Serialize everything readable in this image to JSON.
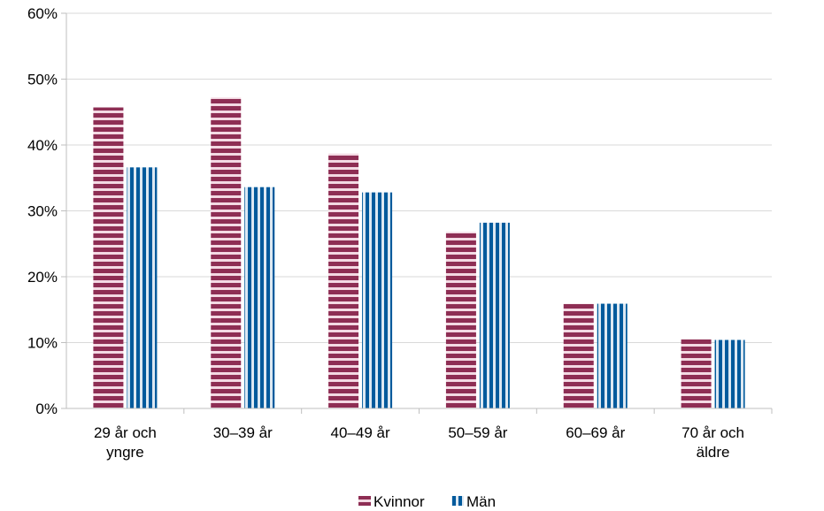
{
  "chart_data": {
    "type": "bar",
    "title": "",
    "xlabel": "",
    "ylabel": "",
    "categories": [
      [
        "29 år och",
        "yngre"
      ],
      [
        "30–39 år"
      ],
      [
        "40–49 år"
      ],
      [
        "50–59 år"
      ],
      [
        "60–69 år"
      ],
      [
        "70 år och",
        "äldre"
      ]
    ],
    "series": [
      {
        "name": "Kvinnor",
        "values": [
          0.457,
          0.472,
          0.387,
          0.268,
          0.159,
          0.105
        ],
        "color": "#8e2e54",
        "stripe": "horizontal",
        "stripe_bg": "#f3d9e3"
      },
      {
        "name": "Män",
        "values": [
          0.366,
          0.336,
          0.328,
          0.282,
          0.159,
          0.104
        ],
        "color": "#005a9c",
        "stripe": "vertical",
        "stripe_bg": "#dde8f2"
      }
    ],
    "ylim": [
      0,
      0.6
    ],
    "yticks": [
      0,
      0.1,
      0.2,
      0.3,
      0.4,
      0.5,
      0.6
    ],
    "ytick_labels": [
      "0%",
      "10%",
      "20%",
      "30%",
      "40%",
      "50%",
      "60%"
    ],
    "grid": true,
    "legend_position": "bottom-center",
    "colors": {
      "grid": "#d9d9d9",
      "axis": "#bfbfbf"
    }
  }
}
